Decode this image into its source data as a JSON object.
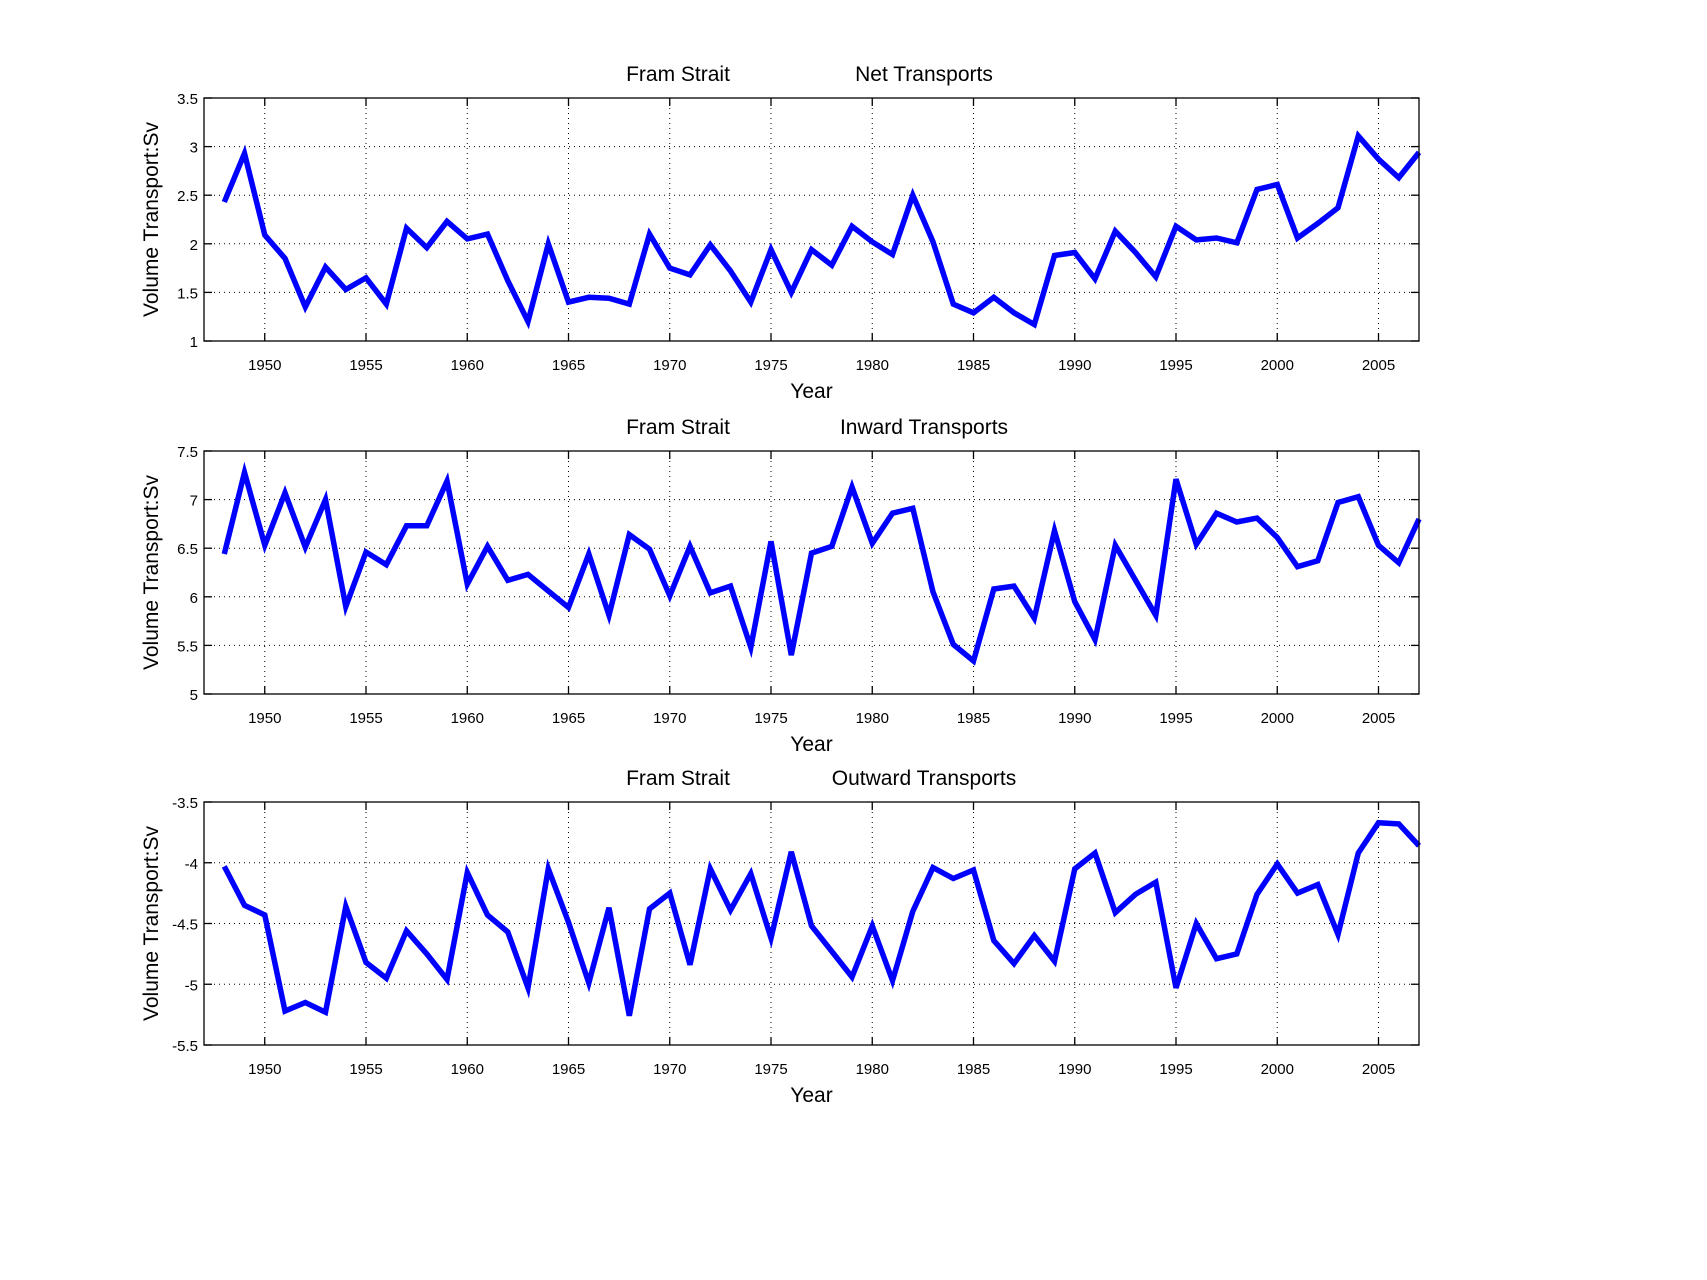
{
  "figure": {
    "background": "#ffffff",
    "line_color": "#0000ff"
  },
  "chart_data": [
    {
      "type": "line",
      "title_left": "Fram Strait",
      "title_right": "Net Transports",
      "xlabel": "Year",
      "ylabel": "Volume Transport:Sv",
      "xlim": [
        1947,
        2007
      ],
      "ylim": [
        1,
        3.5
      ],
      "xticks": [
        1950,
        1955,
        1960,
        1965,
        1970,
        1975,
        1980,
        1985,
        1990,
        1995,
        2000,
        2005
      ],
      "yticks": [
        1,
        1.5,
        2,
        2.5,
        3,
        3.5
      ],
      "ytick_labels": [
        "1",
        "1.5",
        "2",
        "2.5",
        "3",
        "3.5"
      ],
      "grid": true,
      "x": [
        1948,
        1949,
        1950,
        1951,
        1952,
        1953,
        1954,
        1955,
        1956,
        1957,
        1958,
        1959,
        1960,
        1961,
        1962,
        1963,
        1964,
        1965,
        1966,
        1967,
        1968,
        1969,
        1970,
        1971,
        1972,
        1973,
        1974,
        1975,
        1976,
        1977,
        1978,
        1979,
        1980,
        1981,
        1982,
        1983,
        1984,
        1985,
        1986,
        1987,
        1988,
        1989,
        1990,
        1991,
        1992,
        1993,
        1994,
        1995,
        1996,
        1997,
        1998,
        1999,
        2000,
        2001,
        2002,
        2003,
        2004,
        2005,
        2006,
        2007
      ],
      "series": [
        {
          "name": "Net Transports",
          "values": [
            2.43,
            2.93,
            2.09,
            1.85,
            1.35,
            1.76,
            1.53,
            1.65,
            1.38,
            2.16,
            1.96,
            2.23,
            2.05,
            2.1,
            1.62,
            1.2,
            2.0,
            1.4,
            1.45,
            1.44,
            1.38,
            2.1,
            1.75,
            1.68,
            1.99,
            1.72,
            1.4,
            1.94,
            1.5,
            1.94,
            1.78,
            2.18,
            2.02,
            1.89,
            2.5,
            2.02,
            1.38,
            1.29,
            1.45,
            1.29,
            1.17,
            1.88,
            1.91,
            1.64,
            2.13,
            1.91,
            1.66,
            2.18,
            2.04,
            2.06,
            2.01,
            2.56,
            2.61,
            2.06,
            2.21,
            2.37,
            3.11,
            2.87,
            2.68,
            2.94
          ]
        }
      ]
    },
    {
      "type": "line",
      "title_left": "Fram Strait",
      "title_right": "Inward Transports",
      "xlabel": "Year",
      "ylabel": "Volume Transport:Sv",
      "xlim": [
        1947,
        2007
      ],
      "ylim": [
        5,
        7.5
      ],
      "xticks": [
        1950,
        1955,
        1960,
        1965,
        1970,
        1975,
        1980,
        1985,
        1990,
        1995,
        2000,
        2005
      ],
      "yticks": [
        5,
        5.5,
        6,
        6.5,
        7,
        7.5
      ],
      "ytick_labels": [
        "5",
        "5.5",
        "6",
        "6.5",
        "7",
        "7.5"
      ],
      "grid": true,
      "x": [
        1948,
        1949,
        1950,
        1951,
        1952,
        1953,
        1954,
        1955,
        1956,
        1957,
        1958,
        1959,
        1960,
        1961,
        1962,
        1963,
        1964,
        1965,
        1966,
        1967,
        1968,
        1969,
        1970,
        1971,
        1972,
        1973,
        1974,
        1975,
        1976,
        1977,
        1978,
        1979,
        1980,
        1981,
        1982,
        1983,
        1984,
        1985,
        1986,
        1987,
        1988,
        1989,
        1990,
        1991,
        1992,
        1993,
        1994,
        1995,
        1996,
        1997,
        1998,
        1999,
        2000,
        2001,
        2002,
        2003,
        2004,
        2005,
        2006,
        2007
      ],
      "series": [
        {
          "name": "Inward Transports",
          "values": [
            6.44,
            7.28,
            6.53,
            7.07,
            6.51,
            7.0,
            5.9,
            6.46,
            6.33,
            6.73,
            6.73,
            7.19,
            6.13,
            6.52,
            6.17,
            6.23,
            6.06,
            5.89,
            6.44,
            5.81,
            6.64,
            6.49,
            6.01,
            6.52,
            6.04,
            6.11,
            5.48,
            6.57,
            5.4,
            6.45,
            6.52,
            7.13,
            6.55,
            6.86,
            6.91,
            6.05,
            5.51,
            5.34,
            6.08,
            6.11,
            5.78,
            6.68,
            5.95,
            5.56,
            6.53,
            6.17,
            5.81,
            7.21,
            6.54,
            6.86,
            6.77,
            6.81,
            6.61,
            6.31,
            6.37,
            6.97,
            7.03,
            6.53,
            6.35,
            6.8
          ]
        }
      ]
    },
    {
      "type": "line",
      "title_left": "Fram Strait",
      "title_right": "Outward Transports",
      "xlabel": "Year",
      "ylabel": "Volume Transport:Sv",
      "xlim": [
        1947,
        2007
      ],
      "ylim": [
        -5.5,
        -3.5
      ],
      "xticks": [
        1950,
        1955,
        1960,
        1965,
        1970,
        1975,
        1980,
        1985,
        1990,
        1995,
        2000,
        2005
      ],
      "yticks": [
        -5.5,
        -5,
        -4.5,
        -4,
        -3.5
      ],
      "ytick_labels": [
        "-5.5",
        "-5",
        "-4.5",
        "-4",
        "-3.5"
      ],
      "grid": true,
      "x": [
        1948,
        1949,
        1950,
        1951,
        1952,
        1953,
        1954,
        1955,
        1956,
        1957,
        1958,
        1959,
        1960,
        1961,
        1962,
        1963,
        1964,
        1965,
        1966,
        1967,
        1968,
        1969,
        1970,
        1971,
        1972,
        1973,
        1974,
        1975,
        1976,
        1977,
        1978,
        1979,
        1980,
        1981,
        1982,
        1983,
        1984,
        1985,
        1986,
        1987,
        1988,
        1989,
        1990,
        1991,
        1992,
        1993,
        1994,
        1995,
        1996,
        1997,
        1998,
        1999,
        2000,
        2001,
        2002,
        2003,
        2004,
        2005,
        2006,
        2007
      ],
      "series": [
        {
          "name": "Outward Transports",
          "values": [
            -4.03,
            -4.35,
            -4.43,
            -5.22,
            -5.15,
            -5.23,
            -4.36,
            -4.82,
            -4.95,
            -4.56,
            -4.75,
            -4.96,
            -4.08,
            -4.43,
            -4.57,
            -5.03,
            -4.05,
            -4.49,
            -4.99,
            -4.37,
            -5.26,
            -4.38,
            -4.25,
            -4.84,
            -4.05,
            -4.39,
            -4.09,
            -4.62,
            -3.91,
            -4.52,
            -4.73,
            -4.94,
            -4.52,
            -4.97,
            -4.4,
            -4.04,
            -4.13,
            -4.06,
            -4.64,
            -4.83,
            -4.6,
            -4.81,
            -4.05,
            -3.92,
            -4.41,
            -4.26,
            -4.16,
            -5.03,
            -4.5,
            -4.79,
            -4.75,
            -4.26,
            -4.01,
            -4.25,
            -4.18,
            -4.59,
            -3.92,
            -3.67,
            -3.68,
            -3.86
          ]
        }
      ]
    }
  ]
}
